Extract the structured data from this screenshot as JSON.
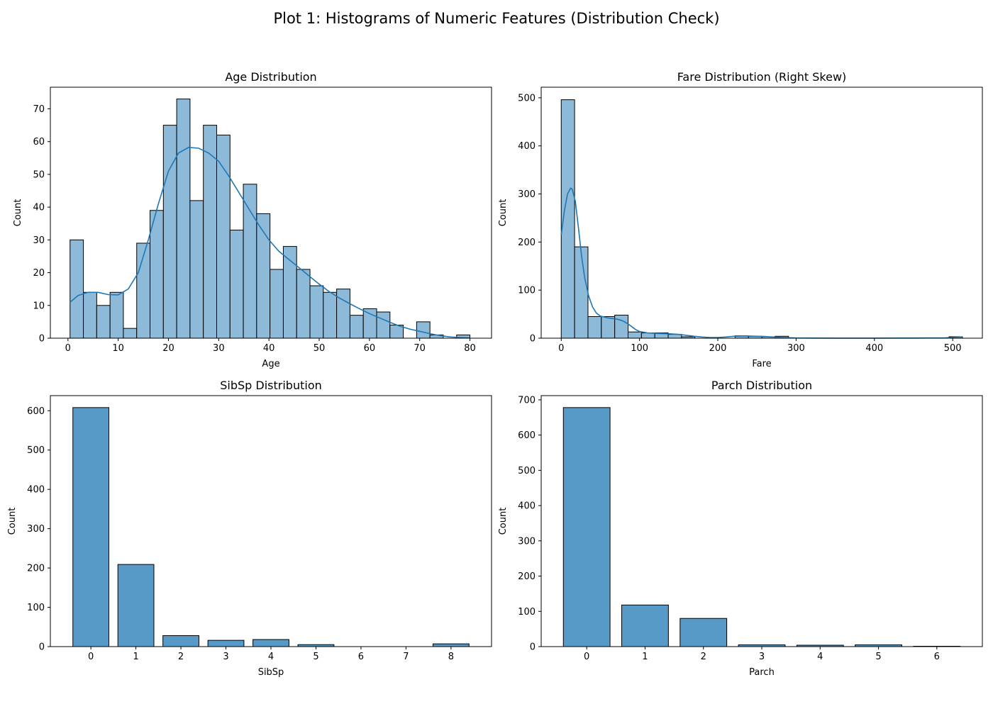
{
  "figure": {
    "title": "Plot 1: Histograms of Numeric Features (Distribution Check)"
  },
  "chart_data": [
    {
      "type": "bar",
      "subtype": "histogram",
      "title": "Age Distribution",
      "xlabel": "Age",
      "ylabel": "Count",
      "xlim": [
        -3.5,
        84.3
      ],
      "ylim": [
        0,
        76.6
      ],
      "xticks": [
        0,
        10,
        20,
        30,
        40,
        50,
        60,
        70,
        80
      ],
      "yticks": [
        0,
        10,
        20,
        30,
        40,
        50,
        60,
        70
      ],
      "bin_start": 0.42,
      "bin_width": 2.6527,
      "values": [
        30,
        14,
        10,
        14,
        3,
        29,
        39,
        65,
        73,
        42,
        65,
        62,
        33,
        47,
        38,
        21,
        28,
        21,
        16,
        14,
        15,
        7,
        9,
        8,
        4,
        0,
        5,
        1,
        0,
        1
      ],
      "kde": {
        "x": [
          0.42,
          2,
          4,
          6,
          8,
          10,
          12,
          14,
          16,
          18,
          20,
          22,
          24,
          26,
          28,
          30,
          32,
          34,
          36,
          38,
          40,
          42,
          44,
          46,
          48,
          50,
          52,
          54,
          56,
          58,
          60,
          62,
          64,
          66,
          68,
          70,
          72,
          74,
          76,
          78,
          80
        ],
        "y": [
          11,
          13,
          14,
          14,
          13.3,
          13.2,
          15,
          20,
          30,
          41,
          51,
          56.5,
          58.2,
          58,
          56.5,
          54,
          49.5,
          44.5,
          39.5,
          34.5,
          30,
          26.5,
          24,
          21.5,
          19,
          16.5,
          14.2,
          12.3,
          10.6,
          9,
          7.5,
          6.2,
          4.9,
          3.7,
          2.8,
          2.1,
          1.4,
          0.8,
          0.4,
          0.2,
          0.1
        ]
      },
      "bar_color": "#8ebad9",
      "line_color": "#1f77b4",
      "grid": false
    },
    {
      "type": "bar",
      "subtype": "histogram",
      "title": "Fare Distribution (Right Skew)",
      "xlabel": "Fare",
      "ylabel": "Count",
      "xlim": [
        -25.6,
        537.9
      ],
      "ylim": [
        0,
        522
      ],
      "xticks": [
        0,
        100,
        200,
        300,
        400,
        500
      ],
      "yticks": [
        0,
        100,
        200,
        300,
        400,
        500
      ],
      "bin_start": 0,
      "bin_width": 17.08,
      "values": [
        496,
        190,
        45,
        45,
        48,
        13,
        11,
        11,
        8,
        3,
        0,
        0,
        0,
        5,
        4,
        3,
        4,
        0,
        0,
        0,
        0,
        0,
        0,
        0,
        0,
        0,
        0,
        0,
        0,
        3
      ],
      "kde": {
        "x": [
          0,
          4,
          8,
          12,
          14,
          18,
          22,
          26,
          30,
          35,
          40,
          45,
          50,
          55,
          60,
          65,
          70,
          75,
          80,
          85,
          90,
          95,
          100,
          110,
          120,
          130,
          140,
          150,
          160,
          170,
          180,
          190,
          200,
          210,
          220,
          230,
          240,
          250,
          260,
          270,
          280,
          300,
          350,
          400,
          450,
          490,
          500,
          512
        ],
        "y": [
          215,
          265,
          300,
          312,
          310,
          285,
          230,
          170,
          125,
          88,
          65,
          52,
          46,
          44,
          42,
          41,
          40,
          38,
          35,
          30,
          24,
          18,
          14,
          11,
          10,
          9.5,
          9,
          8,
          6,
          4,
          2.5,
          1.5,
          1.5,
          2.5,
          4,
          4.5,
          4.5,
          4,
          3.5,
          2.5,
          1.5,
          0.5,
          0.2,
          0.2,
          0.3,
          0.6,
          1.5,
          2.5
        ]
      },
      "bar_color": "#8ebad9",
      "line_color": "#1f77b4",
      "grid": false
    },
    {
      "type": "bar",
      "title": "SibSp Distribution",
      "xlabel": "SibSp",
      "ylabel": "Count",
      "categories": [
        "0",
        "1",
        "2",
        "3",
        "4",
        "5",
        "6",
        "7",
        "8"
      ],
      "values": [
        608,
        209,
        28,
        16,
        18,
        5,
        0,
        0,
        7
      ],
      "xlim": [
        -0.9,
        8.9
      ],
      "ylim": [
        0,
        638.4
      ],
      "yticks": [
        0,
        100,
        200,
        300,
        400,
        500,
        600
      ],
      "bar_color": "#5799c7",
      "grid": false
    },
    {
      "type": "bar",
      "title": "Parch Distribution",
      "xlabel": "Parch",
      "ylabel": "Count",
      "categories": [
        "0",
        "1",
        "2",
        "3",
        "4",
        "5",
        "6"
      ],
      "values": [
        678,
        118,
        80,
        5,
        4,
        5,
        1
      ],
      "xlim": [
        -0.78,
        6.78
      ],
      "ylim": [
        0,
        711.9
      ],
      "yticks": [
        0,
        100,
        200,
        300,
        400,
        500,
        600,
        700
      ],
      "bar_color": "#5799c7",
      "grid": false
    }
  ]
}
